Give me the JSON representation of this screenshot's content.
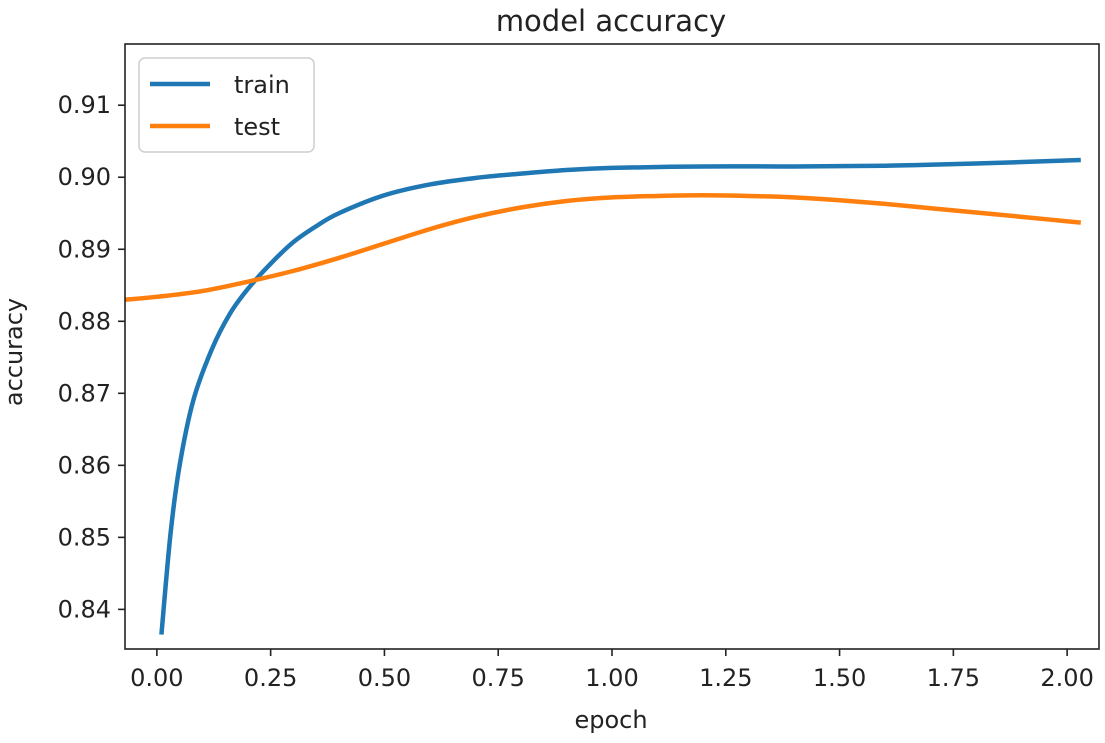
{
  "chart_data": {
    "type": "line",
    "title": "model accuracy",
    "xlabel": "epoch",
    "ylabel": "accuracy",
    "xlim": [
      -0.07,
      2.07
    ],
    "ylim": [
      0.8345,
      0.9185
    ],
    "xticks": [
      0.0,
      0.25,
      0.5,
      0.75,
      1.0,
      1.25,
      1.5,
      1.75,
      2.0
    ],
    "xtick_labels": [
      "0.00",
      "0.25",
      "0.50",
      "0.75",
      "1.00",
      "1.25",
      "1.50",
      "1.75",
      "2.00"
    ],
    "yticks": [
      0.84,
      0.85,
      0.86,
      0.87,
      0.88,
      0.89,
      0.9,
      0.91
    ],
    "ytick_labels": [
      "0.84",
      "0.85",
      "0.86",
      "0.87",
      "0.88",
      "0.89",
      "0.90",
      "0.91"
    ],
    "grid": false,
    "legend_position": "top-left",
    "series": [
      {
        "name": "train",
        "color": "#1f77b4",
        "x": [
          0.01,
          0.03,
          0.05,
          0.08,
          0.12,
          0.16,
          0.2,
          0.25,
          0.3,
          0.35,
          0.4,
          0.5,
          0.6,
          0.7,
          0.8,
          0.9,
          1.0,
          1.2,
          1.4,
          1.6,
          1.8,
          2.03
        ],
        "y": [
          0.8365,
          0.8505,
          0.86,
          0.869,
          0.876,
          0.881,
          0.8845,
          0.888,
          0.891,
          0.8932,
          0.895,
          0.8975,
          0.899,
          0.8999,
          0.9005,
          0.901,
          0.9013,
          0.9015,
          0.9015,
          0.9016,
          0.9019,
          0.9024
        ]
      },
      {
        "name": "test",
        "color": "#ff7f0e",
        "x": [
          -0.07,
          0.0,
          0.1,
          0.2,
          0.3,
          0.4,
          0.5,
          0.6,
          0.7,
          0.8,
          0.9,
          1.0,
          1.1,
          1.2,
          1.3,
          1.4,
          1.5,
          1.6,
          1.7,
          1.8,
          1.9,
          2.03
        ],
        "y": [
          0.883,
          0.8834,
          0.8842,
          0.8855,
          0.887,
          0.8888,
          0.8908,
          0.8928,
          0.8945,
          0.8958,
          0.8967,
          0.8972,
          0.8974,
          0.8975,
          0.8974,
          0.8972,
          0.8968,
          0.8963,
          0.8957,
          0.8951,
          0.8945,
          0.8937
        ]
      }
    ]
  }
}
